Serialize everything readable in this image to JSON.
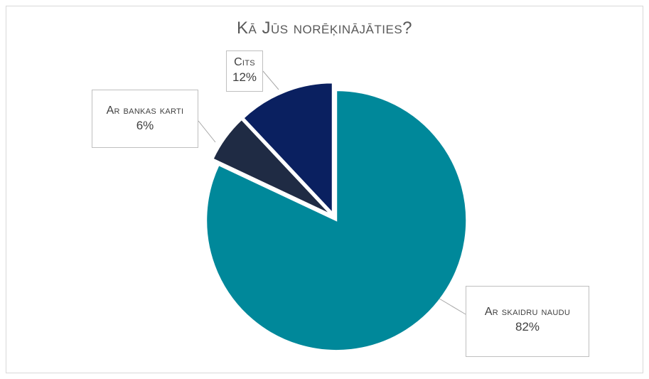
{
  "chart_data": {
    "type": "pie",
    "title": "Kā Jūs norēķinājāties?",
    "slices": [
      {
        "label": "Ar skaidru naudu",
        "value": 82,
        "display": "82%",
        "color": "#00889a"
      },
      {
        "label": "Ar bankas karti",
        "value": 6,
        "display": "6%",
        "color": "#1f2b44"
      },
      {
        "label": "Cits",
        "value": 12,
        "display": "12%",
        "color": "#0a2060"
      }
    ],
    "start_angle": "12 o'clock",
    "direction": "clockwise",
    "exploded": true,
    "legend": "none",
    "data_labels": "callouts"
  }
}
